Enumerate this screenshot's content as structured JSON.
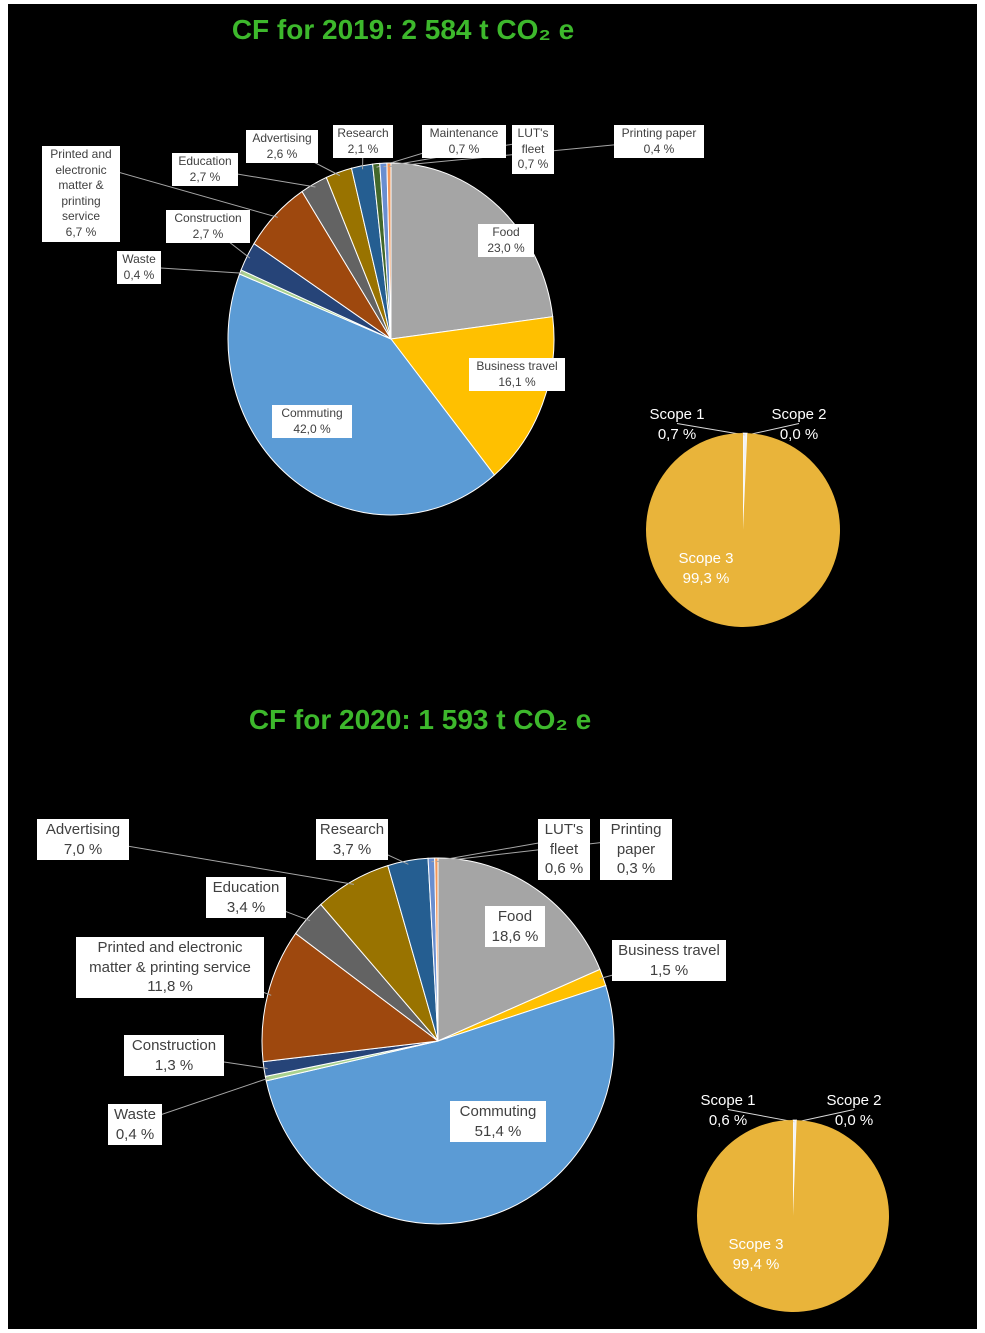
{
  "chart_data": [
    {
      "type": "pie",
      "title": "CF for 2019: 2 584 t CO₂ e",
      "categories": [
        "Food",
        "Business travel",
        "Commuting",
        "Waste",
        "Construction",
        "Printed and electronic matter & printing service",
        "Education",
        "Advertising",
        "Research",
        "Maintenance",
        "LUT's fleet",
        "Printing paper"
      ],
      "values": [
        23.0,
        16.1,
        42.0,
        0.4,
        2.7,
        6.7,
        2.7,
        2.6,
        2.1,
        0.7,
        0.7,
        0.4
      ],
      "value_labels": [
        "23,0 %",
        "16,1 %",
        "42,0 %",
        "0,4 %",
        "2,7 %",
        "6,7 %",
        "2,7 %",
        "2,6 %",
        "2,1 %",
        "0,7 %",
        "0,7 %",
        "0,4 %"
      ],
      "colors": [
        "#a5a5a5",
        "#ffc000",
        "#5b9bd5",
        "#a9d18e",
        "#264478",
        "#9e480e",
        "#636363",
        "#997300",
        "#255e91",
        "#43682b",
        "#698ed0",
        "#f1975a"
      ]
    },
    {
      "type": "pie",
      "categories": [
        "Scope 1",
        "Scope 2",
        "Scope 3"
      ],
      "values": [
        0.7,
        0.0,
        99.3
      ],
      "value_labels": [
        "0,7 %",
        "0,0 %",
        "99,3 %"
      ],
      "colors": [
        "#f2f2f2",
        "#bfbfbf",
        "#e9b43a"
      ]
    },
    {
      "type": "pie",
      "title": "CF for 2020: 1 593 t CO₂ e",
      "categories": [
        "Food",
        "Business travel",
        "Commuting",
        "Waste",
        "Construction",
        "Printed and electronic matter & printing service",
        "Education",
        "Advertising",
        "Research",
        "LUT's fleet",
        "Printing paper"
      ],
      "values": [
        18.6,
        1.5,
        51.4,
        0.4,
        1.3,
        11.8,
        3.4,
        7.0,
        3.7,
        0.6,
        0.3
      ],
      "value_labels": [
        "18,6 %",
        "1,5 %",
        "51,4 %",
        "0,4 %",
        "1,3 %",
        "11,8 %",
        "3,4 %",
        "7,0 %",
        "3,7 %",
        "0,6 %",
        "0,3 %"
      ],
      "colors": [
        "#a5a5a5",
        "#ffc000",
        "#5b9bd5",
        "#a9d18e",
        "#264478",
        "#9e480e",
        "#636363",
        "#997300",
        "#255e91",
        "#698ed0",
        "#f1975a"
      ]
    },
    {
      "type": "pie",
      "categories": [
        "Scope 1",
        "Scope 2",
        "Scope 3"
      ],
      "values": [
        0.6,
        0.0,
        99.4
      ],
      "value_labels": [
        "0,6 %",
        "0,0 %",
        "99,4 %"
      ],
      "colors": [
        "#f2f2f2",
        "#bfbfbf",
        "#e9b43a"
      ]
    }
  ]
}
